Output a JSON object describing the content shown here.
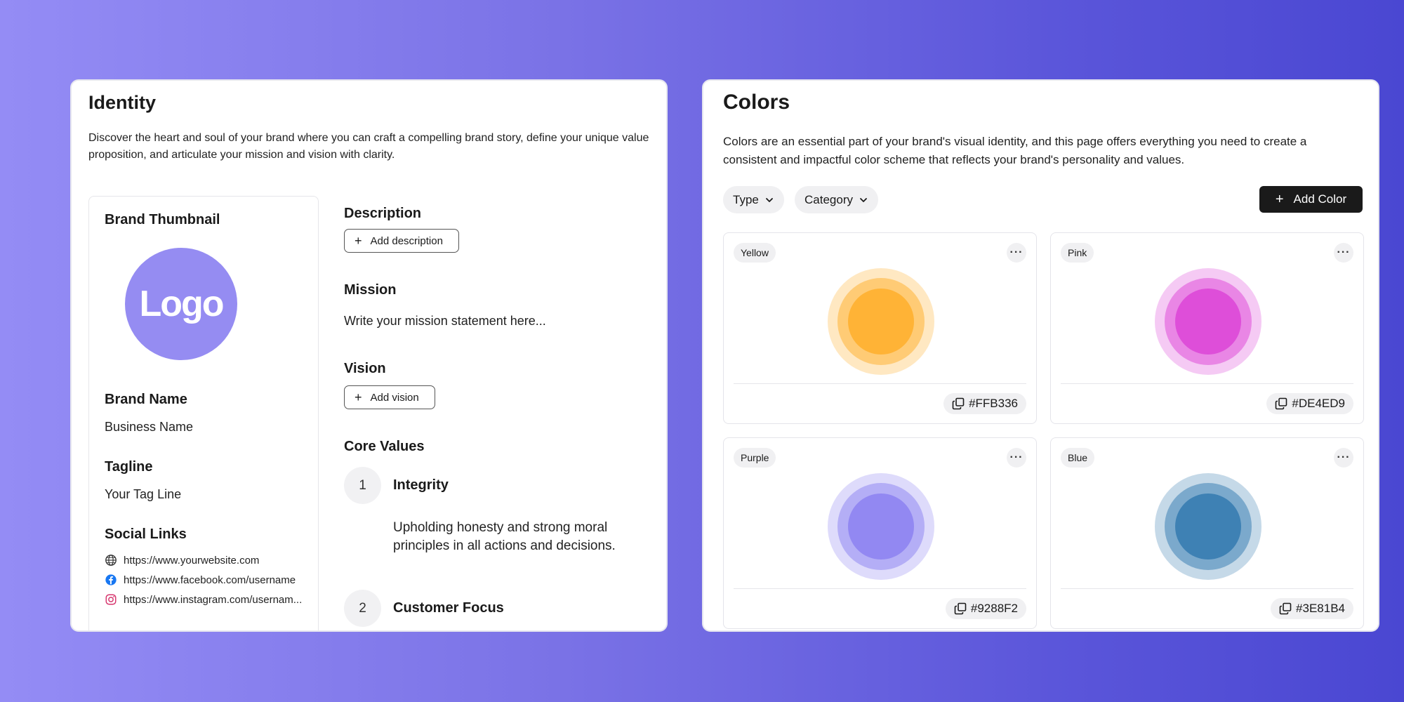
{
  "identity": {
    "title": "Identity",
    "description": "Discover the heart and soul of your brand where you can craft a compelling brand story, define your unique value proposition, and articulate your mission and vision with clarity.",
    "brand_card": {
      "thumbnail_label": "Brand Thumbnail",
      "logo_text": "Logo",
      "logo_color": "#958CF2",
      "brand_name_label": "Brand Name",
      "brand_name_value": "Business Name",
      "tagline_label": "Tagline",
      "tagline_value": "Your Tag Line",
      "social_label": "Social Links",
      "social_links": [
        {
          "icon": "globe-icon",
          "url": "https://www.yourwebsite.com"
        },
        {
          "icon": "facebook-icon",
          "url": "https://www.facebook.com/username"
        },
        {
          "icon": "instagram-icon",
          "url": "https://www.instagram.com/usernam..."
        }
      ]
    },
    "description_section": {
      "label": "Description",
      "button_label": "Add description"
    },
    "mission_section": {
      "label": "Mission",
      "placeholder": "Write your mission statement here..."
    },
    "vision_section": {
      "label": "Vision",
      "button_label": "Add vision"
    },
    "core_values": {
      "label": "Core Values",
      "items": [
        {
          "number": "1",
          "title": "Integrity",
          "description": "Upholding honesty and strong moral principles in all actions and decisions."
        },
        {
          "number": "2",
          "title": "Customer Focus",
          "description": ""
        }
      ]
    }
  },
  "colors": {
    "title": "Colors",
    "description": "Colors are an essential part of your brand's visual identity, and this page offers everything you need to create a consistent and impactful color scheme that reflects your brand's personality and values.",
    "filters": [
      {
        "label": "Type"
      },
      {
        "label": "Category"
      }
    ],
    "add_button_label": "Add Color",
    "cards": [
      {
        "name": "Yellow",
        "hex": "#FFB336",
        "color": "#FFB336"
      },
      {
        "name": "Pink",
        "hex": "#DE4ED9",
        "color": "#DE4ED9"
      },
      {
        "name": "Purple",
        "hex": "#9288F2",
        "color": "#9288F2"
      },
      {
        "name": "Blue",
        "hex": "#3E81B4",
        "color": "#3E81B4"
      }
    ]
  }
}
